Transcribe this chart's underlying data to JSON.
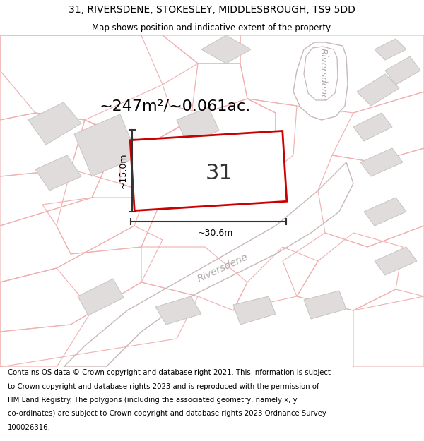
{
  "title_line1": "31, RIVERSDENE, STOKESLEY, MIDDLESBROUGH, TS9 5DD",
  "title_line2": "Map shows position and indicative extent of the property.",
  "area_label": "~247m²/~0.061ac.",
  "property_number": "31",
  "width_label": "~30.6m",
  "height_label": "~15.0m",
  "footer_lines": [
    "Contains OS data © Crown copyright and database right 2021. This information is subject",
    "to Crown copyright and database rights 2023 and is reproduced with the permission of",
    "HM Land Registry. The polygons (including the associated geometry, namely x, y",
    "co-ordinates) are subject to Crown copyright and database rights 2023 Ordnance Survey",
    "100026316."
  ],
  "bg_color": "#ffffff",
  "parcel_edge": "#f0b0b0",
  "parcel_fill": "#ffffff",
  "building_fill": "#e0dcdc",
  "building_edge": "#c8c4c4",
  "road_edge": "#c8b8b8",
  "road_label_color": "#b0a8a8",
  "property_fill": "#ffffff",
  "property_edge": "#cc0000",
  "dim_line_color": "#333333",
  "text_color": "#222222",
  "title_fontsize": 10,
  "subtitle_fontsize": 8.5,
  "area_fontsize": 16,
  "number_fontsize": 22,
  "dim_fontsize": 9,
  "road_label_fontsize": 11,
  "footer_fontsize": 7.3
}
